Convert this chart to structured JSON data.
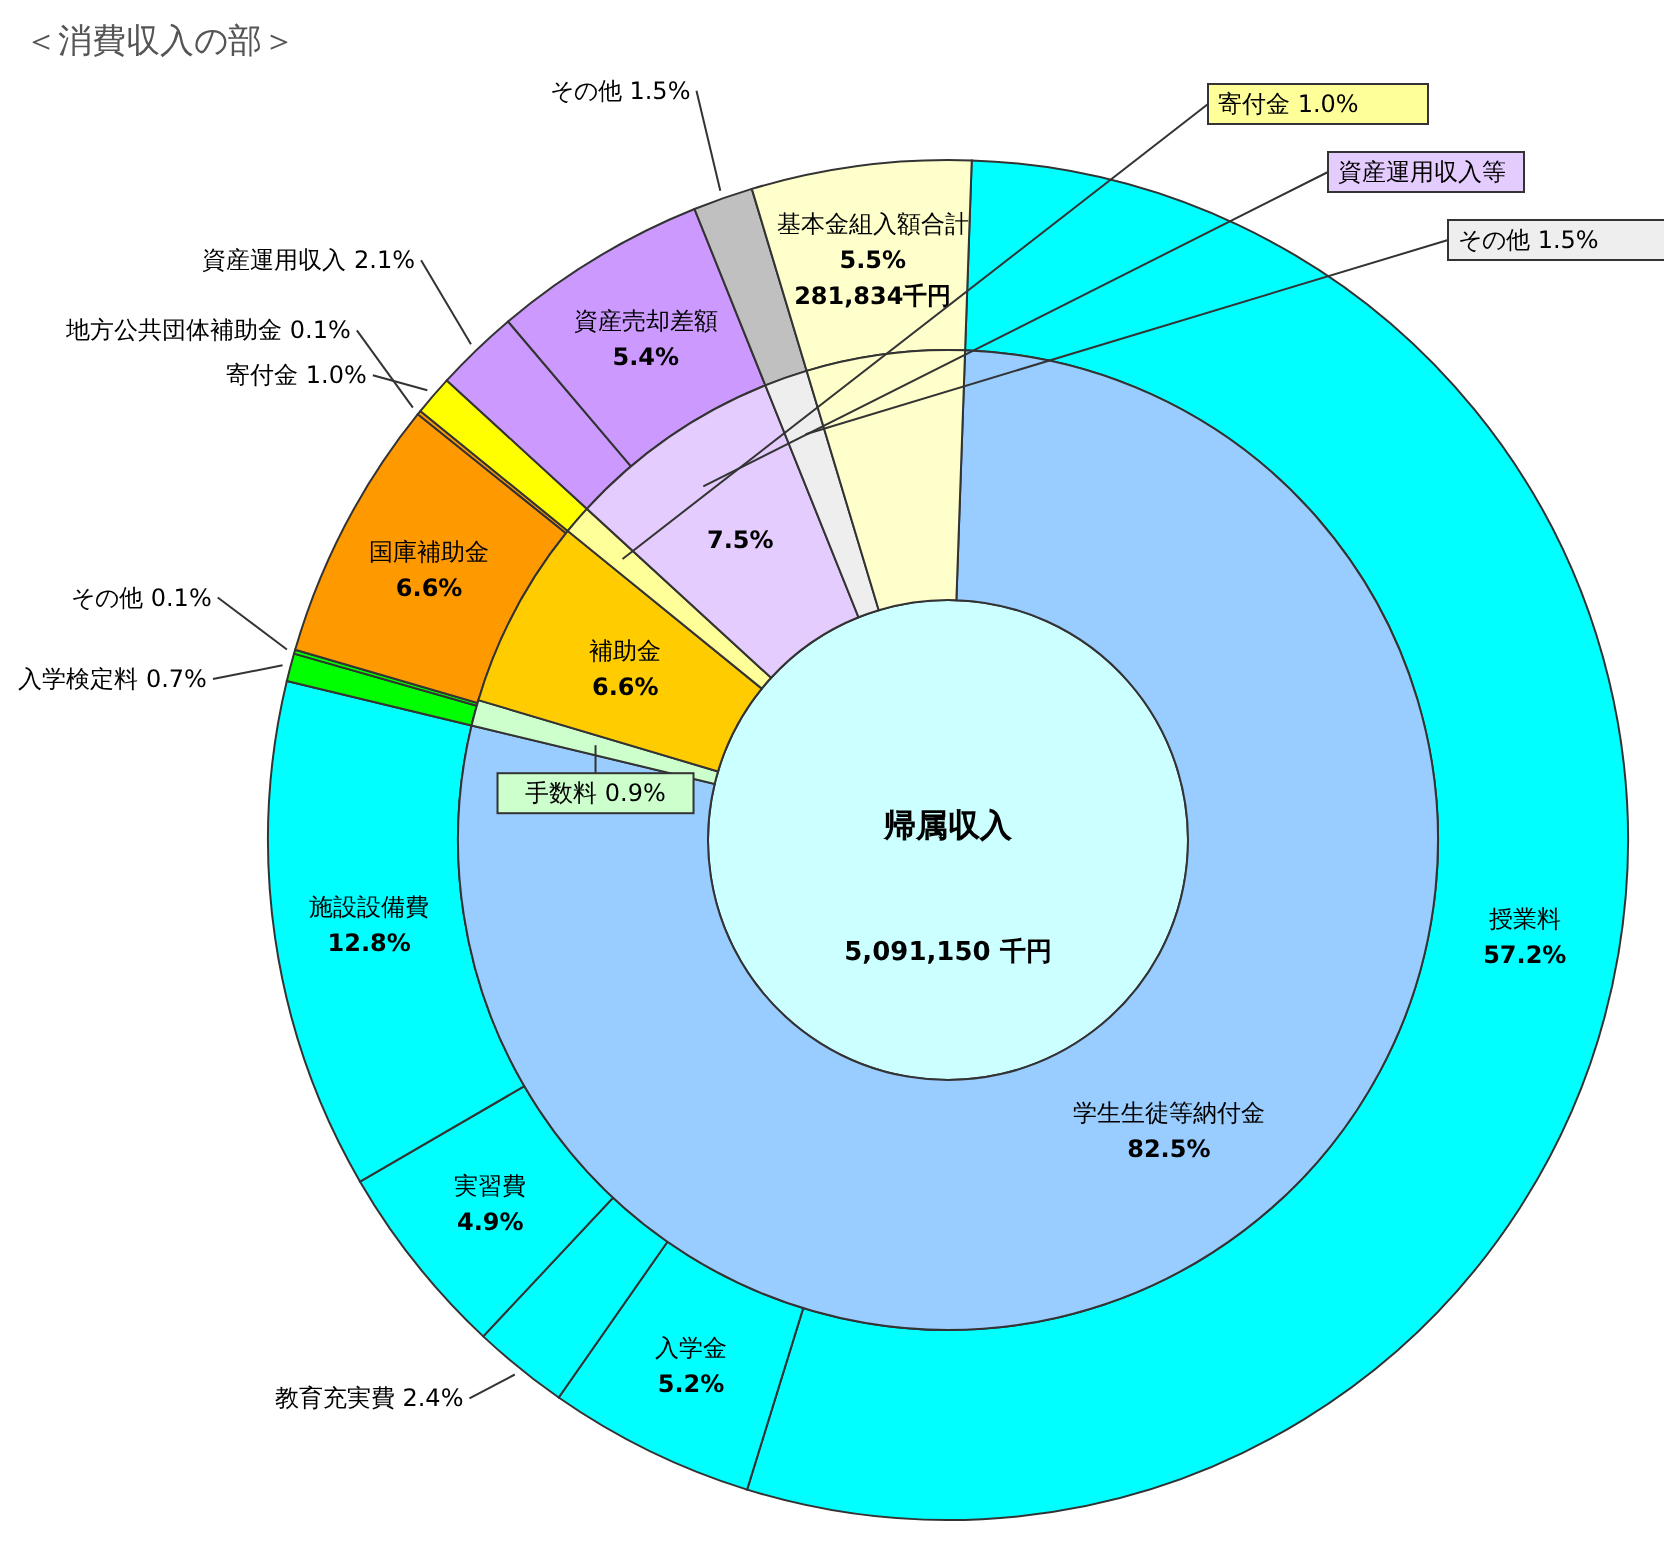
{
  "chart_data": [
    {
      "type": "donut",
      "title": "＜消費収入の部＞",
      "categories": [
        "授業料",
        "入学金",
        "教育充実費",
        "実習費",
        "施設設備費",
        "入学検定料",
        "その他",
        "国庫補助金",
        "地方公共団体補助金",
        "寄付金",
        "資産運用収入",
        "資産売却差額",
        "その他",
        "基本金組入額合計"
      ],
      "values": [
        57.2,
        5.2,
        2.4,
        4.9,
        12.8,
        0.7,
        0.1,
        6.6,
        0.1,
        1.0,
        2.1,
        5.4,
        1.5,
        5.5
      ],
      "colors": [
        "#00ffff",
        "#00ffff",
        "#00ffff",
        "#00ffff",
        "#00ffff",
        "#00ff00",
        "#00ff00",
        "#ff9900",
        "#ff9900",
        "#ffff00",
        "#cc99ff",
        "#cc99ff",
        "#c0c0c0",
        "#ffffcc"
      ],
      "value_labels": [
        "57.2%",
        "5.2%",
        "2.4%",
        "4.9%",
        "12.8%",
        "0.7%",
        "0.1%",
        "6.6%",
        "0.1%",
        "1.0%",
        "2.1%",
        "5.4%",
        "1.5%",
        "5.5%"
      ],
      "annotations": [
        "帰属収入",
        "5,091,150 千円",
        "281,834千円"
      ]
    },
    {
      "type": "donut",
      "categories": [
        "学生生徒等納付金",
        "手数料",
        "補助金",
        "寄付金",
        "資産運用収入等",
        "その他",
        null
      ],
      "values": [
        82.5,
        0.9,
        6.6,
        1.0,
        7.5,
        1.5,
        5.5
      ],
      "colors": [
        "#99ccff",
        "#ccffcc",
        "#ffcc00",
        "#ffff99",
        "#e5ccff",
        "#eeeeee",
        "#ffffcc"
      ],
      "value_labels": [
        "82.5%",
        "0.9%",
        "6.6%",
        "1.0%",
        "7.5%",
        "1.5%",
        null
      ]
    }
  ]
}
